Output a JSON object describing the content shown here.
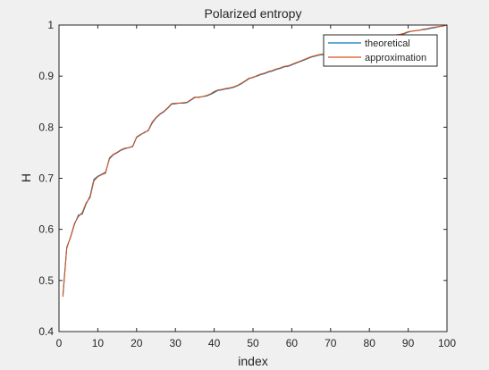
{
  "chart_data": {
    "type": "line",
    "title": "Polarized entropy",
    "xlabel": "index",
    "ylabel": "H",
    "xlim": [
      0,
      100
    ],
    "ylim": [
      0.4,
      1
    ],
    "xticks": [
      0,
      10,
      20,
      30,
      40,
      50,
      60,
      70,
      80,
      90,
      100
    ],
    "yticks": [
      0.4,
      0.5,
      0.6,
      0.7,
      0.8,
      0.9,
      1
    ],
    "grid": false,
    "legend_position": "top-right",
    "series": [
      {
        "name": "theoretical",
        "color": "#0072BD",
        "x": [
          1,
          2,
          3,
          4,
          5,
          6,
          7,
          8,
          9,
          10,
          11,
          12,
          13,
          14,
          15,
          16,
          17,
          18,
          19,
          20,
          21,
          22,
          23,
          24,
          25,
          26,
          27,
          28,
          29,
          30,
          31,
          32,
          33,
          34,
          35,
          36,
          37,
          38,
          39,
          40,
          41,
          42,
          43,
          44,
          45,
          46,
          47,
          48,
          49,
          50,
          51,
          52,
          53,
          54,
          55,
          56,
          57,
          58,
          59,
          60,
          61,
          62,
          63,
          64,
          65,
          66,
          67,
          68,
          69,
          70,
          71,
          72,
          73,
          74,
          75,
          76,
          77,
          78,
          79,
          80,
          81,
          82,
          83,
          84,
          85,
          86,
          87,
          88,
          89,
          90,
          91,
          92,
          93,
          94,
          95,
          96,
          97,
          98,
          99,
          100
        ],
        "y": [
          0.47,
          0.565,
          0.585,
          0.61,
          0.628,
          0.63,
          0.65,
          0.665,
          0.698,
          0.704,
          0.708,
          0.712,
          0.738,
          0.746,
          0.75,
          0.755,
          0.758,
          0.76,
          0.762,
          0.78,
          0.785,
          0.79,
          0.793,
          0.808,
          0.818,
          0.825,
          0.83,
          0.837,
          0.845,
          0.846,
          0.847,
          0.847,
          0.848,
          0.853,
          0.858,
          0.859,
          0.86,
          0.861,
          0.864,
          0.868,
          0.872,
          0.873,
          0.875,
          0.876,
          0.878,
          0.881,
          0.885,
          0.89,
          0.895,
          0.898,
          0.9,
          0.903,
          0.905,
          0.908,
          0.91,
          0.913,
          0.915,
          0.918,
          0.919,
          0.922,
          0.925,
          0.928,
          0.931,
          0.934,
          0.937,
          0.939,
          0.941,
          0.942,
          0.944,
          0.946,
          0.948,
          0.95,
          0.952,
          0.954,
          0.956,
          0.958,
          0.96,
          0.962,
          0.964,
          0.966,
          0.968,
          0.97,
          0.972,
          0.975,
          0.976,
          0.978,
          0.98,
          0.981,
          0.983,
          0.986,
          0.988,
          0.989,
          0.99,
          0.991,
          0.992,
          0.994,
          0.995,
          0.997,
          0.998,
          1.0
        ]
      },
      {
        "name": "approximation",
        "color": "#D95319",
        "x": [
          1,
          2,
          3,
          4,
          5,
          6,
          7,
          8,
          9,
          10,
          11,
          12,
          13,
          14,
          15,
          16,
          17,
          18,
          19,
          20,
          21,
          22,
          23,
          24,
          25,
          26,
          27,
          28,
          29,
          30,
          31,
          32,
          33,
          34,
          35,
          36,
          37,
          38,
          39,
          40,
          41,
          42,
          43,
          44,
          45,
          46,
          47,
          48,
          49,
          50,
          51,
          52,
          53,
          54,
          55,
          56,
          57,
          58,
          59,
          60,
          61,
          62,
          63,
          64,
          65,
          66,
          67,
          68,
          69,
          70,
          71,
          72,
          73,
          74,
          75,
          76,
          77,
          78,
          79,
          80,
          81,
          82,
          83,
          84,
          85,
          86,
          87,
          88,
          89,
          90,
          91,
          92,
          93,
          94,
          95,
          96,
          97,
          98,
          99,
          100
        ],
        "y": [
          0.468,
          0.563,
          0.586,
          0.612,
          0.625,
          0.633,
          0.652,
          0.662,
          0.695,
          0.703,
          0.707,
          0.71,
          0.74,
          0.747,
          0.751,
          0.756,
          0.759,
          0.76,
          0.763,
          0.781,
          0.786,
          0.789,
          0.794,
          0.81,
          0.819,
          0.826,
          0.831,
          0.838,
          0.846,
          0.847,
          0.847,
          0.848,
          0.849,
          0.854,
          0.859,
          0.858,
          0.86,
          0.862,
          0.865,
          0.87,
          0.873,
          0.874,
          0.876,
          0.877,
          0.879,
          0.882,
          0.886,
          0.891,
          0.896,
          0.897,
          0.901,
          0.904,
          0.906,
          0.909,
          0.911,
          0.914,
          0.916,
          0.919,
          0.92,
          0.923,
          0.926,
          0.929,
          0.932,
          0.935,
          0.938,
          0.94,
          0.942,
          0.943,
          0.945,
          0.947,
          0.949,
          0.951,
          0.953,
          0.955,
          0.957,
          0.959,
          0.961,
          0.963,
          0.965,
          0.967,
          0.969,
          0.971,
          0.973,
          0.976,
          0.977,
          0.979,
          0.981,
          0.982,
          0.984,
          0.987,
          0.988,
          0.989,
          0.99,
          0.992,
          0.993,
          0.995,
          0.996,
          0.997,
          0.998,
          1.0
        ]
      }
    ]
  }
}
